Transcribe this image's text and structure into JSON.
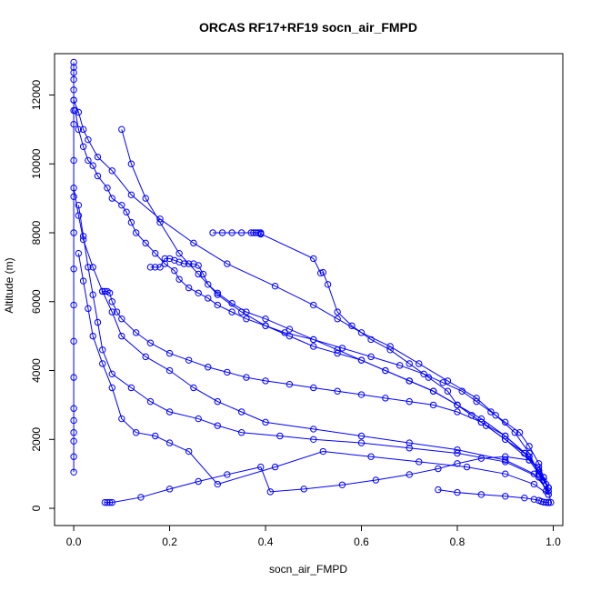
{
  "chart_data": {
    "type": "scatter",
    "title": "ORCAS RF17+RF19 socn_air_FMPD",
    "xlabel": "socn_air_FMPD",
    "ylabel": "Altitude (m)",
    "xlim": [
      -0.04,
      1.02
    ],
    "ylim": [
      -500,
      13200
    ],
    "xticks": [
      0.0,
      0.2,
      0.4,
      0.6,
      0.8,
      1.0
    ],
    "xtick_labels": [
      "0.0",
      "0.2",
      "0.4",
      "0.6",
      "0.8",
      "1.0"
    ],
    "yticks": [
      0,
      2000,
      4000,
      6000,
      8000,
      10000,
      12000
    ],
    "ytick_labels": [
      "0",
      "2000",
      "4000",
      "6000",
      "8000",
      "10000",
      "12000"
    ],
    "grid": false,
    "legend": "none",
    "marker": "open-circle",
    "color": "#0000ff",
    "series": [
      {
        "x": [
          0.0,
          0.0,
          0.0,
          0.0,
          0.0,
          0.0,
          0.0,
          0.0,
          0.0,
          0.0,
          0.0,
          0.0,
          0.0,
          0.0,
          0.0,
          0.0,
          0.0,
          0.0,
          0.0,
          0.0,
          0.0
        ],
        "y": [
          1050,
          1500,
          1950,
          2200,
          2550,
          2900,
          3800,
          4850,
          5900,
          6950,
          8000,
          9050,
          10100,
          11150,
          11550,
          11850,
          12150,
          12450,
          12650,
          12800,
          12950
        ]
      },
      {
        "x": [
          0.003,
          0.01,
          0.02,
          0.03,
          0.04,
          0.05,
          0.07,
          0.08,
          0.1,
          0.11,
          0.12,
          0.13,
          0.15,
          0.17,
          0.19,
          0.21,
          0.22,
          0.24,
          0.26,
          0.28,
          0.3,
          0.33,
          0.36,
          0.4,
          0.44,
          0.5,
          0.56,
          0.62,
          0.68,
          0.73,
          0.77,
          0.81,
          0.84,
          0.87,
          0.9,
          0.93,
          0.95,
          0.97,
          0.98,
          0.99
        ],
        "y": [
          11550,
          11000,
          10500,
          10100,
          9950,
          9650,
          9300,
          9000,
          8800,
          8600,
          8300,
          8000,
          7700,
          7400,
          7100,
          6900,
          6650,
          6400,
          6250,
          6100,
          5900,
          5700,
          5500,
          5300,
          5100,
          4900,
          4650,
          4400,
          4150,
          3900,
          3650,
          3400,
          3100,
          2800,
          2500,
          2200,
          1800,
          1300,
          900,
          600
        ]
      },
      {
        "x": [
          0.0,
          0.01,
          0.02,
          0.03,
          0.05,
          0.08,
          0.12,
          0.18,
          0.25,
          0.32,
          0.42,
          0.5,
          0.55,
          0.6,
          0.66,
          0.72,
          0.78,
          0.84,
          0.88,
          0.92,
          0.95,
          0.97,
          0.985
        ],
        "y": [
          11850,
          11500,
          11000,
          10700,
          10200,
          9800,
          9100,
          8400,
          7700,
          7100,
          6450,
          5900,
          5500,
          5100,
          4700,
          4200,
          3700,
          3200,
          2700,
          2200,
          1600,
          1000,
          500
        ]
      },
      {
        "x": [
          0.29,
          0.31,
          0.33,
          0.35,
          0.37,
          0.375,
          0.38,
          0.385,
          0.39,
          0.39,
          0.39,
          0.5,
          0.515,
          0.52,
          0.53,
          0.55,
          0.58,
          0.62,
          0.66,
          0.7,
          0.74,
          0.78,
          0.8,
          0.83,
          0.86,
          0.9,
          0.94,
          0.97,
          0.99
        ],
        "y": [
          8000,
          8000,
          8000,
          8000,
          8000,
          8000,
          8000,
          8000,
          8000,
          7960,
          7970,
          7250,
          6830,
          6850,
          6500,
          5700,
          5300,
          4900,
          4600,
          4200,
          3800,
          3400,
          3000,
          2700,
          2400,
          2000,
          1600,
          1100,
          600
        ]
      },
      {
        "x": [
          0.16,
          0.17,
          0.18,
          0.19,
          0.2,
          0.21,
          0.22,
          0.23,
          0.24,
          0.25,
          0.26,
          0.27,
          0.28,
          0.3,
          0.33,
          0.36,
          0.4,
          0.45,
          0.5,
          0.55,
          0.6,
          0.65,
          0.7,
          0.75,
          0.8,
          0.85,
          0.9,
          0.95,
          0.98
        ],
        "y": [
          7000,
          7000,
          7000,
          7250,
          7250,
          7200,
          7150,
          7100,
          7100,
          7100,
          7050,
          6800,
          6500,
          6250,
          5950,
          5700,
          5500,
          5200,
          4900,
          4600,
          4300,
          4000,
          3700,
          3400,
          3000,
          2600,
          2100,
          1500,
          800
        ]
      },
      {
        "x": [
          0.06,
          0.065,
          0.07,
          0.075,
          0.08,
          0.09,
          0.1,
          0.13,
          0.16,
          0.2,
          0.24,
          0.28,
          0.32,
          0.36,
          0.4,
          0.45,
          0.5,
          0.55,
          0.6,
          0.65,
          0.7,
          0.75,
          0.8,
          0.85,
          0.9,
          0.94,
          0.97,
          0.99
        ],
        "y": [
          6300,
          6300,
          6300,
          6250,
          6000,
          5700,
          5500,
          5100,
          4800,
          4500,
          4300,
          4100,
          3950,
          3800,
          3700,
          3600,
          3500,
          3400,
          3300,
          3200,
          3100,
          3000,
          2800,
          2500,
          2100,
          1600,
          1100,
          600
        ]
      },
      {
        "x": [
          0.1,
          0.12,
          0.15,
          0.18,
          0.22,
          0.26,
          0.3,
          0.35,
          0.4,
          0.45,
          0.5,
          0.55,
          0.6,
          0.65,
          0.7,
          0.75,
          0.8,
          0.85,
          0.9,
          0.95,
          0.985
        ],
        "y": [
          11000,
          10000,
          9000,
          8300,
          7400,
          6800,
          6200,
          5700,
          5300,
          5000,
          4700,
          4500,
          4300,
          4000,
          3700,
          3400,
          3000,
          2500,
          2000,
          1400,
          700
        ]
      },
      {
        "x": [
          0.0,
          0.01,
          0.02,
          0.04,
          0.06,
          0.08,
          0.1,
          0.15,
          0.2,
          0.25,
          0.3,
          0.35,
          0.4,
          0.5,
          0.6,
          0.7,
          0.8,
          0.9,
          0.96,
          0.99
        ],
        "y": [
          9300,
          8500,
          7800,
          7000,
          6300,
          5700,
          5000,
          4400,
          4000,
          3500,
          3100,
          2800,
          2500,
          2300,
          2100,
          1900,
          1700,
          1400,
          1000,
          500
        ]
      },
      {
        "x": [
          0.01,
          0.02,
          0.03,
          0.04,
          0.05,
          0.06,
          0.08,
          0.12,
          0.16,
          0.2,
          0.26,
          0.3,
          0.35,
          0.43,
          0.5,
          0.6,
          0.7,
          0.8,
          0.9,
          0.97,
          0.99
        ],
        "y": [
          8800,
          7900,
          7000,
          6200,
          5400,
          4600,
          3900,
          3500,
          3100,
          2800,
          2600,
          2400,
          2200,
          2100,
          2000,
          1900,
          1750,
          1600,
          1350,
          900,
          400
        ]
      },
      {
        "x": [
          0.01,
          0.02,
          0.03,
          0.04,
          0.06,
          0.08,
          0.1,
          0.13,
          0.17,
          0.2,
          0.24,
          0.3,
          0.42,
          0.52,
          0.62,
          0.72,
          0.82,
          0.9,
          0.96,
          0.99
        ],
        "y": [
          7400,
          6600,
          5800,
          5000,
          4200,
          3500,
          2600,
          2200,
          2100,
          1900,
          1650,
          700,
          1200,
          1650,
          1500,
          1350,
          1200,
          1000,
          700,
          400
        ]
      },
      {
        "x": [
          0.065,
          0.07,
          0.075,
          0.08,
          0.14,
          0.2,
          0.26,
          0.32,
          0.39,
          0.41,
          0.48,
          0.56,
          0.63,
          0.7,
          0.76,
          0.8,
          0.85,
          0.9,
          0.95,
          0.97,
          0.98,
          0.99,
          0.995
        ],
        "y": [
          170,
          170,
          170,
          170,
          320,
          560,
          780,
          980,
          1200,
          480,
          560,
          680,
          820,
          980,
          1150,
          1300,
          1450,
          1500,
          1400,
          1200,
          900,
          500,
          170
        ]
      },
      {
        "x": [
          0.76,
          0.8,
          0.85,
          0.9,
          0.94,
          0.96,
          0.97,
          0.975,
          0.98,
          0.985,
          0.99,
          0.99,
          0.99,
          0.99,
          0.99,
          0.99,
          0.99,
          0.99
        ],
        "y": [
          540,
          460,
          400,
          350,
          300,
          260,
          230,
          200,
          180,
          170,
          170,
          170,
          170,
          170,
          170,
          170,
          170,
          170
        ]
      }
    ]
  }
}
